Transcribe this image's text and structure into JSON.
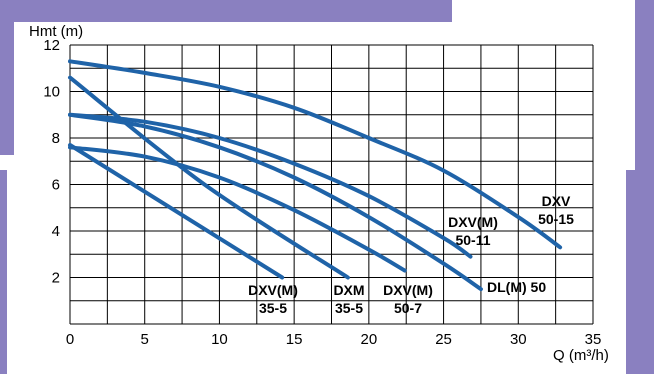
{
  "chart_data": {
    "type": "line",
    "xlabel": "Q (m³/h)",
    "ylabel": "Hmt (m)",
    "xlim": [
      0,
      35
    ],
    "ylim": [
      0,
      12
    ],
    "x_ticks": [
      0,
      5,
      10,
      15,
      20,
      25,
      30,
      35
    ],
    "y_ticks": [
      2,
      4,
      6,
      8,
      10,
      12
    ],
    "grid": true,
    "line_color": "#1f63a8",
    "series": [
      {
        "name": "DXV(M) 35-5",
        "label_lines": [
          "DXV(M)",
          "35-5"
        ],
        "x": [
          0,
          14.2
        ],
        "y": [
          7.7,
          2.0
        ]
      },
      {
        "name": "DXM 35-5",
        "label_lines": [
          "DXM",
          "35-5"
        ],
        "x": [
          0,
          9.0,
          18.6
        ],
        "y": [
          10.6,
          6.0,
          2.0
        ]
      },
      {
        "name": "DXV(M) 50-7",
        "label_lines": [
          "DXV(M)",
          "50-7"
        ],
        "x": [
          0,
          5,
          10,
          15,
          20,
          22.4
        ],
        "y": [
          7.6,
          7.2,
          6.3,
          4.9,
          3.2,
          2.3
        ]
      },
      {
        "name": "DL(M) 50",
        "label_lines": [
          "DL(M) 50"
        ],
        "x": [
          0,
          5,
          10,
          15,
          20,
          25,
          27.5
        ],
        "y": [
          9.0,
          8.5,
          7.6,
          6.3,
          4.6,
          2.6,
          1.5
        ]
      },
      {
        "name": "DXV(M) 50-11",
        "label_lines": [
          "DXV(M)",
          "50-11"
        ],
        "x": [
          0,
          5,
          10,
          15,
          20,
          25,
          26.8
        ],
        "y": [
          9.0,
          8.7,
          8.0,
          6.9,
          5.5,
          3.7,
          2.9
        ]
      },
      {
        "name": "DXV 50-15",
        "label_lines": [
          "DXV",
          "50-15"
        ],
        "x": [
          0,
          5,
          10,
          15,
          20,
          25,
          30,
          32.8
        ],
        "y": [
          11.3,
          10.8,
          10.2,
          9.3,
          8.0,
          6.6,
          4.6,
          3.3
        ]
      }
    ]
  }
}
